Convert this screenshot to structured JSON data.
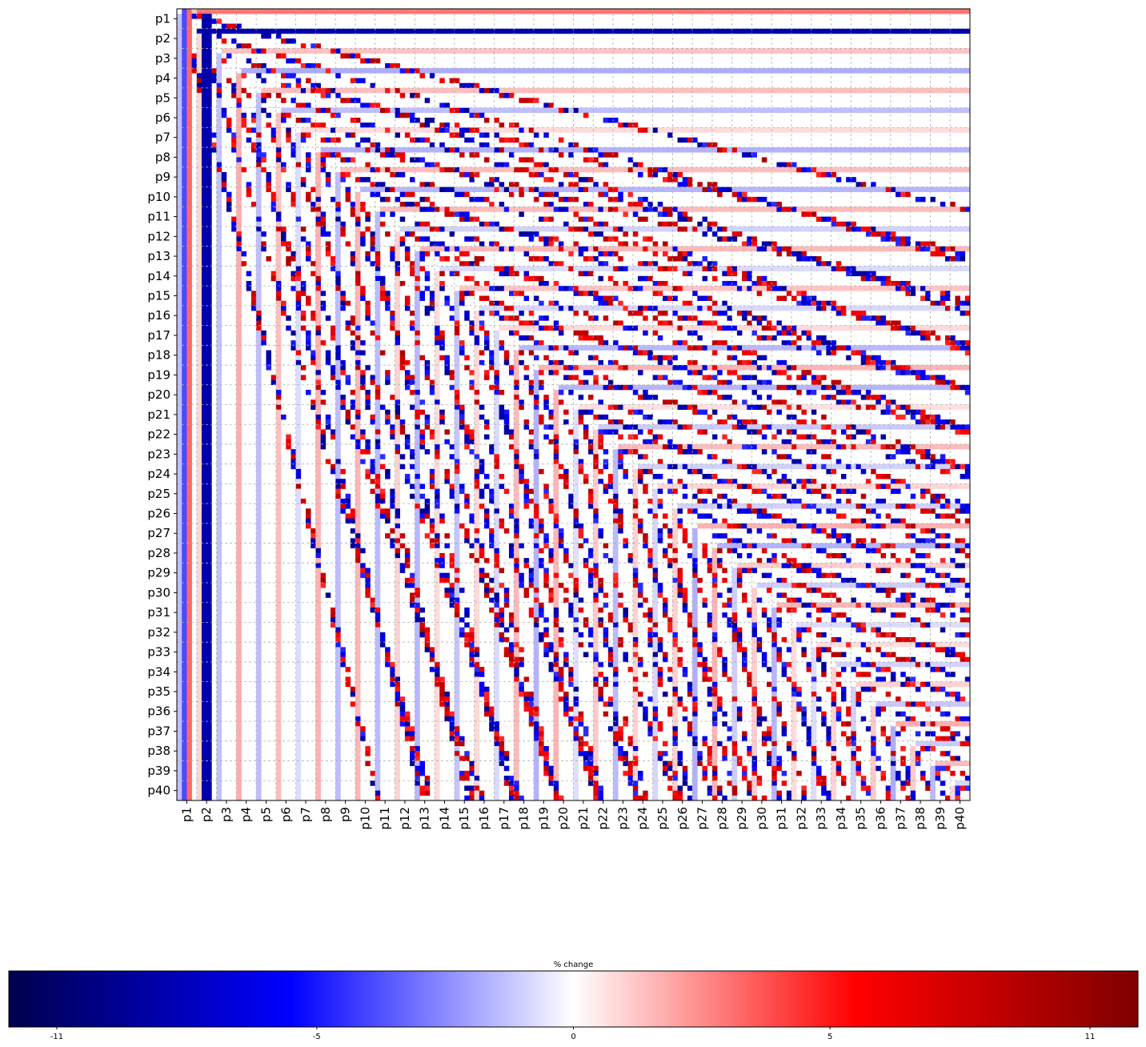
{
  "chart_data": {
    "type": "heatmap",
    "title": "",
    "xlabel": "",
    "ylabel": "",
    "rows": [
      "p1",
      "p2",
      "p3",
      "p4",
      "p5",
      "p6",
      "p7",
      "p8",
      "p9",
      "p10",
      "p11",
      "p12",
      "p13",
      "p14",
      "p15",
      "p16",
      "p17",
      "p18",
      "p19",
      "p20",
      "p21",
      "p22",
      "p23",
      "p24",
      "p25",
      "p26",
      "p27",
      "p28",
      "p29",
      "p30",
      "p31",
      "p32",
      "p33",
      "p34",
      "p35",
      "p36",
      "p37",
      "p38",
      "p39",
      "p40"
    ],
    "columns": [
      "p1",
      "p2",
      "p3",
      "p4",
      "p5",
      "p6",
      "p7",
      "p8",
      "p9",
      "p10",
      "p11",
      "p12",
      "p13",
      "p14",
      "p15",
      "p16",
      "p17",
      "p18",
      "p19",
      "p20",
      "p21",
      "p22",
      "p23",
      "p24",
      "p25",
      "p26",
      "p27",
      "p28",
      "p29",
      "p30",
      "p31",
      "p32",
      "p33",
      "p34",
      "p35",
      "p36",
      "p37",
      "p38",
      "p39",
      "p40"
    ],
    "subdivisions_per_cell": 4,
    "grid": true,
    "colormap": "seismic",
    "colors": {
      "min": "#00004c",
      "neg": "#0000ff",
      "zero": "#ffffff",
      "pos": "#ff0000",
      "max": "#7f0000"
    },
    "colorbar": {
      "label": "% change",
      "min": -11,
      "max": 11,
      "ticks": [
        -11,
        -5,
        0,
        5,
        11
      ],
      "orientation": "horizontal"
    },
    "pattern_note_values": {
      "diagonal_band_peak": 9,
      "stripe_value": 3
    }
  }
}
